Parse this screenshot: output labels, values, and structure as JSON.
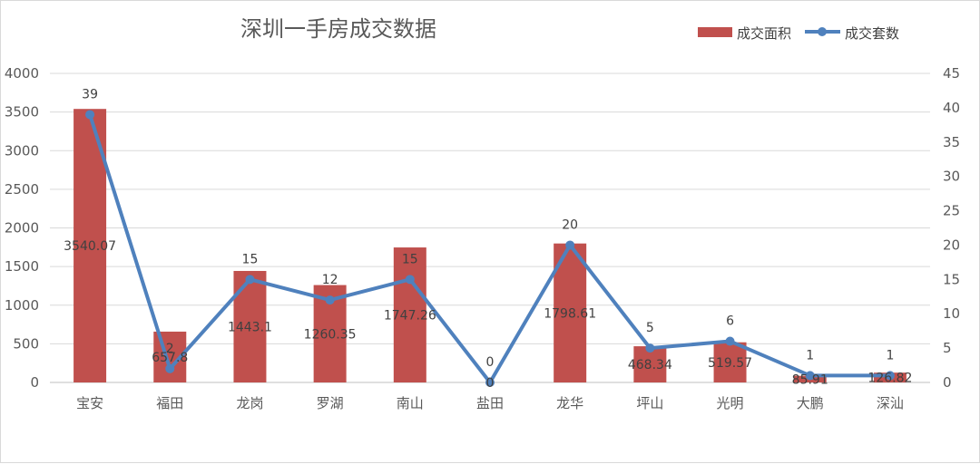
{
  "chart_data": {
    "type": "bar",
    "title": "深圳一手房成交数据",
    "categories": [
      "宝安",
      "福田",
      "龙岗",
      "罗湖",
      "南山",
      "盐田",
      "龙华",
      "坪山",
      "光明",
      "大鹏",
      "深汕"
    ],
    "series": [
      {
        "name": "成交面积",
        "type": "bar",
        "axis": "left",
        "color": "#c0504d",
        "values": [
          3540.07,
          657.8,
          1443.1,
          1260.35,
          1747.26,
          0,
          1798.61,
          468.34,
          519.57,
          85.91,
          126.82
        ],
        "labels": [
          "3540.07",
          "657.8",
          "1443.1",
          "1260.35",
          "1747.26",
          "0",
          "1798.61",
          "468.34",
          "519.57",
          "85.91",
          "126.82"
        ]
      },
      {
        "name": "成交套数",
        "type": "line",
        "axis": "right",
        "color": "#4f81bd",
        "values": [
          39,
          2,
          15,
          12,
          15,
          0,
          20,
          5,
          6,
          1,
          1
        ],
        "labels": [
          "39",
          "2",
          "15",
          "12",
          "15",
          "0",
          "20",
          "5",
          "6",
          "1",
          "1"
        ]
      }
    ],
    "y_left": {
      "min": 0,
      "max": 4000,
      "ticks": [
        "0",
        "500",
        "1000",
        "1500",
        "2000",
        "2500",
        "3000",
        "3500",
        "4000"
      ]
    },
    "y_right": {
      "min": 0,
      "max": 45,
      "ticks": [
        "0",
        "5",
        "10",
        "15",
        "20",
        "25",
        "30",
        "35",
        "40",
        "45"
      ]
    },
    "grid": true,
    "legend": "top-right"
  }
}
